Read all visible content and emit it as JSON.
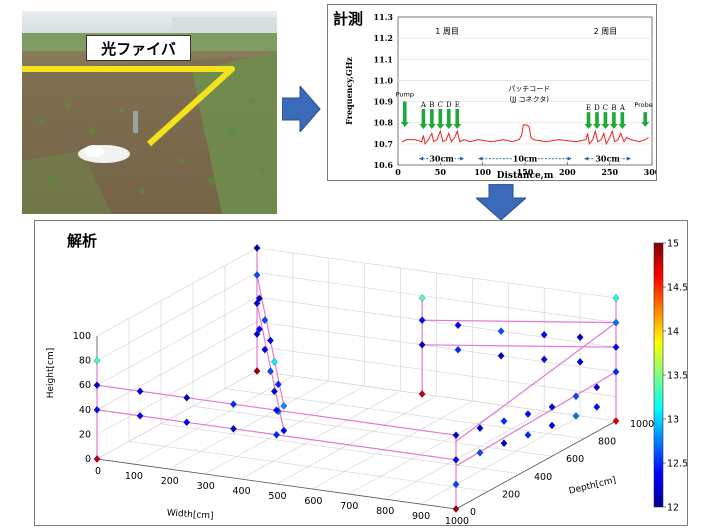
{
  "photo": {
    "fiber_label": "光ファイバ"
  },
  "measurement": {
    "title": "計測",
    "chart_data": {
      "type": "line",
      "xlabel": "Distance,m",
      "ylabel": "Frequency,GHz",
      "xlim": [
        0,
        300
      ],
      "ylim": [
        10.6,
        11.3
      ],
      "xticks": [
        "0",
        "50",
        "100",
        "150",
        "200",
        "250",
        "300"
      ],
      "yticks": [
        "10.6",
        "10.7",
        "10.8",
        "10.9",
        "11.0",
        "11.1",
        "11.2",
        "11.3"
      ],
      "annotations": {
        "first_lap": "1 周目",
        "second_lap": "2 周目",
        "patch_cord": "パッチコード",
        "jj_connector": "(JJ コネクタ)",
        "pump": "Pump",
        "probe": "Probe",
        "labels_left": [
          "A",
          "B",
          "C",
          "D",
          "E"
        ],
        "labels_right": [
          "E",
          "D",
          "C",
          "B",
          "A"
        ],
        "span_left": "30cm",
        "span_mid": "10cm",
        "span_right": "30cm"
      },
      "series": [
        {
          "color": "#e8241c",
          "x": [
            5,
            10,
            20,
            28,
            30,
            32,
            36,
            40,
            42,
            46,
            50,
            53,
            57,
            60,
            63,
            67,
            70,
            73,
            78,
            85,
            95,
            110,
            125,
            135,
            143,
            146,
            148,
            150,
            152,
            155,
            157,
            160,
            175,
            190,
            210,
            222,
            224,
            226,
            230,
            233,
            236,
            240,
            243,
            246,
            250,
            253,
            256,
            260,
            263,
            267,
            270,
            275,
            285,
            292,
            296
          ],
          "y": [
            10.71,
            10.72,
            10.72,
            10.71,
            10.74,
            10.7,
            10.72,
            10.75,
            10.71,
            10.72,
            10.76,
            10.71,
            10.72,
            10.75,
            10.71,
            10.73,
            10.76,
            10.71,
            10.72,
            10.71,
            10.72,
            10.71,
            10.72,
            10.71,
            10.72,
            10.74,
            10.79,
            10.79,
            10.79,
            10.78,
            10.73,
            10.72,
            10.71,
            10.72,
            10.71,
            10.72,
            10.75,
            10.7,
            10.72,
            10.76,
            10.71,
            10.72,
            10.75,
            10.7,
            10.73,
            10.76,
            10.71,
            10.72,
            10.75,
            10.71,
            10.73,
            10.72,
            10.71,
            10.72,
            10.73
          ]
        }
      ]
    }
  },
  "analysis": {
    "title": "解析",
    "chart_data": {
      "type": "scatter",
      "xlabel": "Width[cm]",
      "ylabel": "Depth[cm]",
      "zlabel": "Height[cm]",
      "xticks": [
        "0",
        "100",
        "200",
        "300",
        "400",
        "500",
        "600",
        "700",
        "800",
        "900",
        "1000"
      ],
      "yticks": [
        "0",
        "200",
        "400",
        "600",
        "800",
        "1000"
      ],
      "zticks": [
        "0",
        "20",
        "40",
        "60",
        "80",
        "100"
      ],
      "colorbar": {
        "min": 12,
        "max": 15,
        "ticks": [
          "12",
          "12.5",
          "13",
          "13.5",
          "14",
          "14.5",
          "15"
        ]
      },
      "points": [
        [
          0,
          1000,
          100,
          12.1
        ],
        [
          0,
          1000,
          78,
          12.6
        ],
        [
          0,
          1000,
          55,
          12.3
        ],
        [
          0,
          1000,
          30,
          12.2
        ],
        [
          0,
          1000,
          0,
          14.9
        ],
        [
          60,
          880,
          70,
          12.2
        ],
        [
          120,
          780,
          62,
          12.6
        ],
        [
          180,
          680,
          55,
          12.3
        ],
        [
          240,
          570,
          48,
          13.1
        ],
        [
          300,
          460,
          40,
          12.5
        ],
        [
          360,
          360,
          32,
          12.8
        ],
        [
          60,
          880,
          45,
          12.4
        ],
        [
          120,
          780,
          38,
          12.3
        ],
        [
          180,
          680,
          30,
          12.6
        ],
        [
          240,
          570,
          24,
          12.2
        ],
        [
          300,
          460,
          18,
          12.7
        ],
        [
          360,
          360,
          12,
          12.4
        ],
        [
          0,
          0,
          80,
          13.3
        ],
        [
          0,
          0,
          60,
          12.2
        ],
        [
          0,
          0,
          40,
          12.4
        ],
        [
          0,
          0,
          0,
          14.8
        ],
        [
          120,
          0,
          60,
          12.3
        ],
        [
          250,
          0,
          60,
          12.2
        ],
        [
          380,
          0,
          60,
          12.5
        ],
        [
          500,
          0,
          60,
          12.4
        ],
        [
          120,
          0,
          40,
          12.4
        ],
        [
          250,
          0,
          40,
          12.3
        ],
        [
          380,
          0,
          40,
          12.2
        ],
        [
          500,
          0,
          40,
          12.5
        ],
        [
          1000,
          0,
          60,
          12.2
        ],
        [
          1000,
          0,
          40,
          12.3
        ],
        [
          1000,
          0,
          20,
          12.6
        ],
        [
          1000,
          0,
          0,
          14.9
        ],
        [
          1000,
          1000,
          100,
          13.2
        ],
        [
          1000,
          1000,
          80,
          12.7
        ],
        [
          1000,
          1000,
          60,
          12.3
        ],
        [
          1000,
          1000,
          40,
          12.5
        ],
        [
          1000,
          1000,
          0,
          14.7
        ],
        [
          1000,
          150,
          55,
          12.3
        ],
        [
          1000,
          300,
          50,
          12.5
        ],
        [
          1000,
          450,
          45,
          12.4
        ],
        [
          1000,
          600,
          40,
          12.2
        ],
        [
          1000,
          750,
          38,
          12.6
        ],
        [
          1000,
          880,
          36,
          12.3
        ],
        [
          1000,
          150,
          35,
          12.6
        ],
        [
          1000,
          300,
          32,
          12.2
        ],
        [
          1000,
          450,
          28,
          12.5
        ],
        [
          1000,
          600,
          25,
          12.3
        ],
        [
          1000,
          750,
          22,
          12.7
        ],
        [
          1000,
          880,
          20,
          12.4
        ],
        [
          460,
          1000,
          78,
          13.4
        ],
        [
          460,
          1000,
          60,
          12.4
        ],
        [
          460,
          1000,
          40,
          12.2
        ],
        [
          460,
          1000,
          0,
          14.8
        ],
        [
          560,
          1000,
          60,
          12.3
        ],
        [
          680,
          1000,
          60,
          12.6
        ],
        [
          800,
          1000,
          62,
          12.4
        ],
        [
          900,
          1000,
          64,
          12.2
        ],
        [
          560,
          1000,
          40,
          12.5
        ],
        [
          680,
          1000,
          40,
          12.2
        ],
        [
          800,
          1000,
          42,
          12.4
        ],
        [
          900,
          1000,
          44,
          12.3
        ]
      ]
    }
  }
}
